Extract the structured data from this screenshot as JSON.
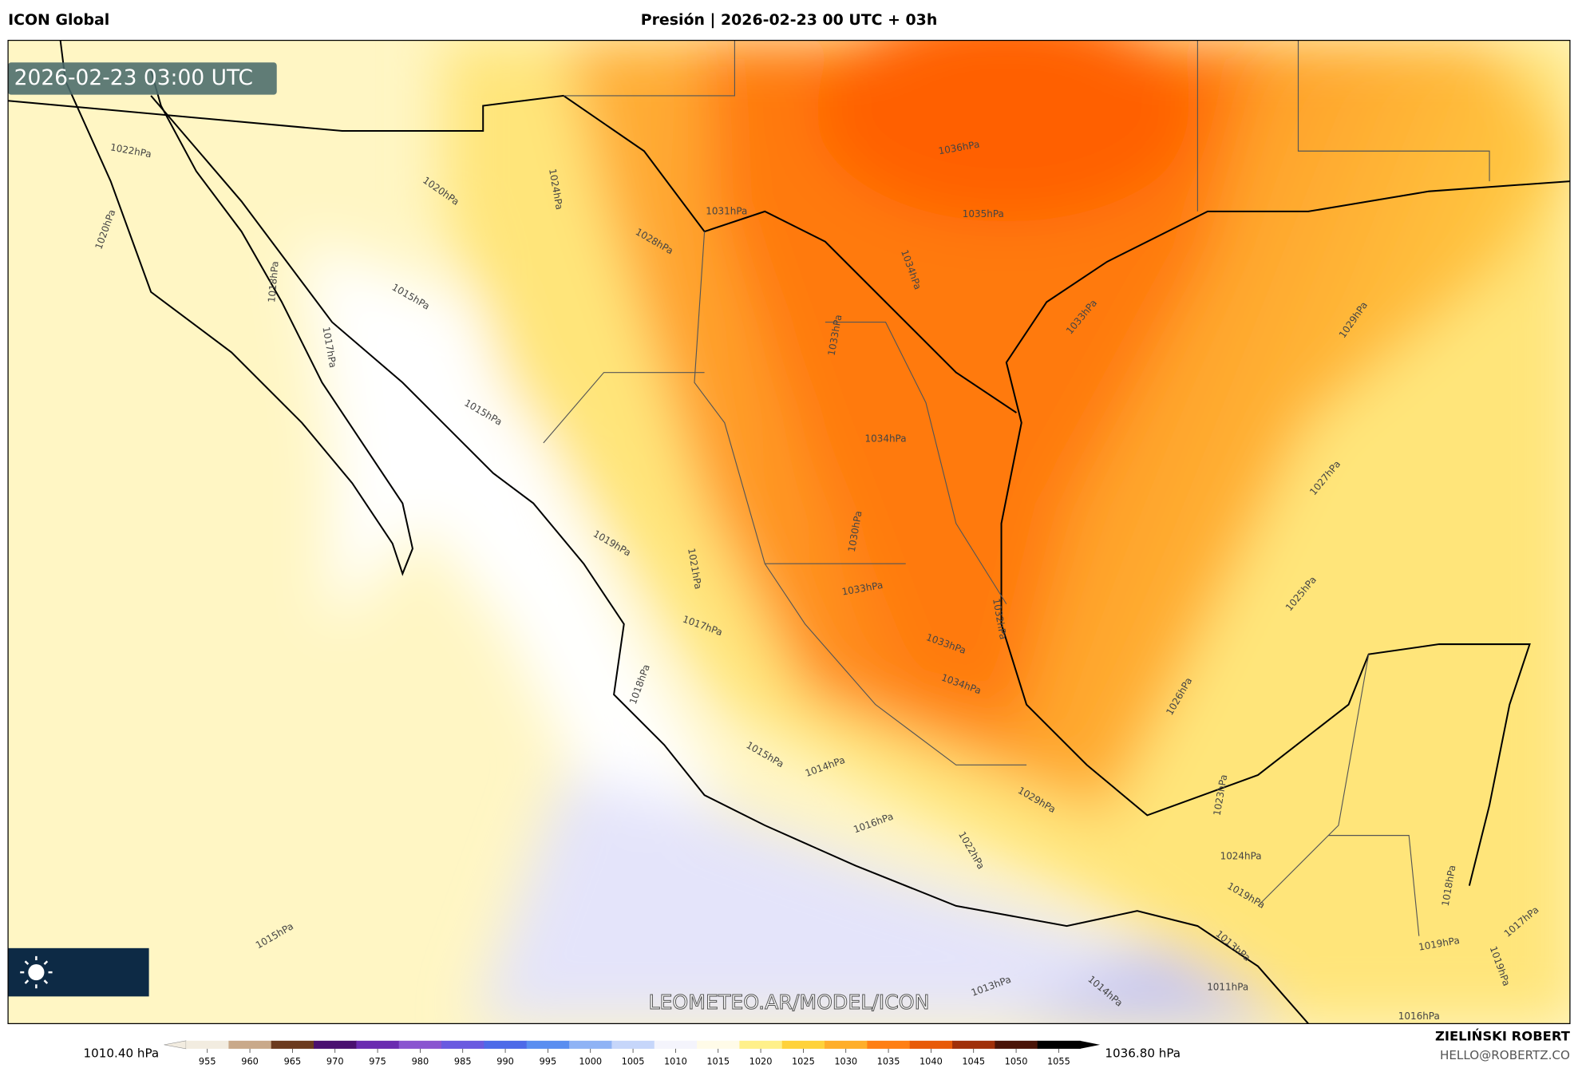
{
  "header": {
    "model": "ICON Global",
    "title": "Presión | 2026-02-23 00 UTC + 03h"
  },
  "map": {
    "timestamp": "2026-02-23 03:00 UTC",
    "watermark": "LEOMETEO.AR/MODEL/ICON",
    "contour_labels": [
      "1022hPa",
      "1020hPa",
      "1018hPa",
      "1017hPa",
      "1015hPa",
      "1020hPa",
      "1024hPa",
      "1028hPa",
      "1031hPa",
      "1036hPa",
      "1035hPa",
      "1034hPa",
      "1033hPa",
      "1034hPa",
      "1033hPa",
      "1029hPa",
      "1027hPa",
      "1015hPa",
      "1019hPa",
      "1021hPa",
      "1030hPa",
      "1033hPa",
      "1032hPa",
      "1017hPa",
      "1018hPa",
      "1033hPa",
      "1034hPa",
      "1025hPa",
      "1026hPa",
      "1015hPa",
      "1014hPa",
      "1016hPa",
      "1029hPa",
      "1022hPa",
      "1023hPa",
      "1024hPa",
      "1019hPa",
      "1018hPa",
      "1017hPa",
      "1019hPa",
      "1019hPa",
      "1015hPa",
      "1013hPa",
      "1014hPa",
      "1011hPa",
      "1013hPa",
      "1016hPa"
    ]
  },
  "colorbar": {
    "min_label": "1010.40 hPa",
    "max_label": "1036.80 hPa",
    "ticks": [
      955,
      960,
      965,
      970,
      975,
      980,
      985,
      990,
      995,
      1000,
      1005,
      1010,
      1015,
      1020,
      1025,
      1030,
      1035,
      1040,
      1045,
      1050,
      1055
    ],
    "colors": [
      "#f2ece0",
      "#c9a98a",
      "#6b3a1e",
      "#4a1070",
      "#6a2bb0",
      "#8a55d0",
      "#6a5ae0",
      "#4d6ae8",
      "#5a8ef0",
      "#8fb3f5",
      "#c6d6fa",
      "#f4f4fc",
      "#fffbe8",
      "#fff08a",
      "#ffd23a",
      "#ffae2a",
      "#ff7f14",
      "#e85a08",
      "#a0300a",
      "#4a1408",
      "#000000"
    ]
  },
  "credits": {
    "author": "ZIELIŃSKI ROBERT",
    "email": "HELLO@ROBERTZ.CO"
  }
}
